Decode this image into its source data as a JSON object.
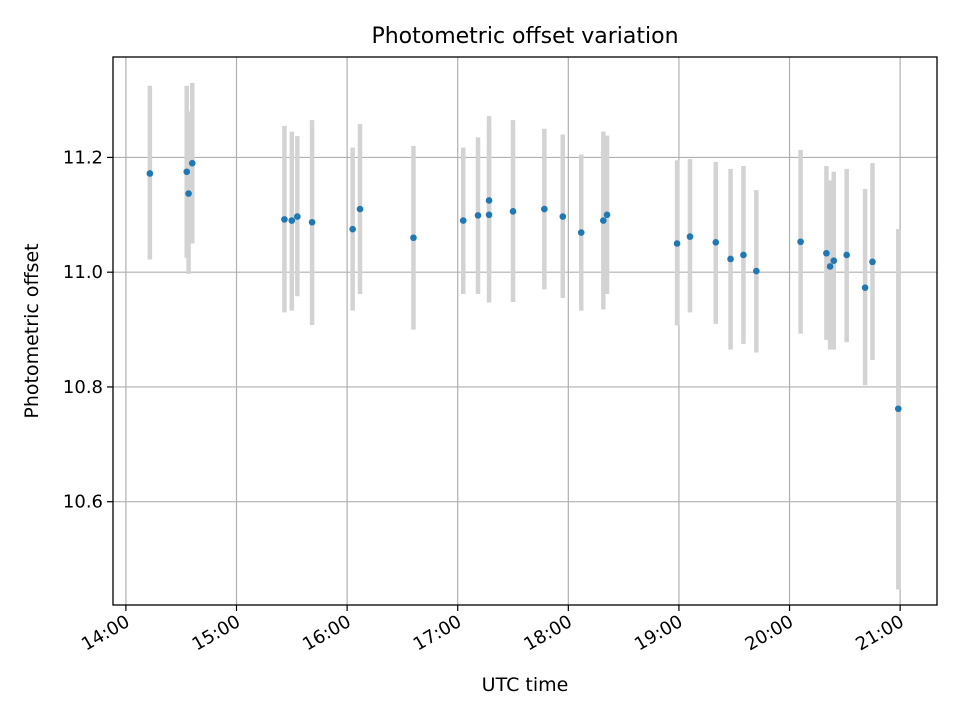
{
  "chart_data": {
    "type": "scatter",
    "title": "Photometric offset variation",
    "xlabel": "UTC time",
    "ylabel": "Photometric offset",
    "x_ticks": [
      "14:00",
      "15:00",
      "16:00",
      "17:00",
      "18:00",
      "19:00",
      "20:00",
      "21:00"
    ],
    "y_ticks": [
      "10.6",
      "10.8",
      "11.0",
      "11.2"
    ],
    "xlim": [
      "13:53",
      "21:20"
    ],
    "ylim": [
      10.42,
      11.375
    ],
    "grid": true,
    "colors": {
      "points": "#1f77b4",
      "errorbars": "#d3d3d3",
      "grid": "#b0b0b0"
    },
    "points": [
      {
        "x": "14:13",
        "y": 11.172,
        "yerr_low": 11.022,
        "yerr_high": 11.325
      },
      {
        "x": "14:33",
        "y": 11.175,
        "yerr_low": 11.025,
        "yerr_high": 11.325
      },
      {
        "x": "14:34",
        "y": 11.137,
        "yerr_low": 10.997,
        "yerr_high": 11.28
      },
      {
        "x": "14:36",
        "y": 11.19,
        "yerr_low": 11.05,
        "yerr_high": 11.33
      },
      {
        "x": "15:26",
        "y": 11.092,
        "yerr_low": 10.93,
        "yerr_high": 11.255
      },
      {
        "x": "15:30",
        "y": 11.09,
        "yerr_low": 10.933,
        "yerr_high": 11.245
      },
      {
        "x": "15:33",
        "y": 11.097,
        "yerr_low": 10.958,
        "yerr_high": 11.237
      },
      {
        "x": "15:41",
        "y": 11.087,
        "yerr_low": 10.908,
        "yerr_high": 11.265
      },
      {
        "x": "16:03",
        "y": 11.075,
        "yerr_low": 10.933,
        "yerr_high": 11.217
      },
      {
        "x": "16:07",
        "y": 11.11,
        "yerr_low": 10.962,
        "yerr_high": 11.258
      },
      {
        "x": "16:36",
        "y": 11.06,
        "yerr_low": 10.9,
        "yerr_high": 11.22
      },
      {
        "x": "17:03",
        "y": 11.09,
        "yerr_low": 10.962,
        "yerr_high": 11.217
      },
      {
        "x": "17:11",
        "y": 11.099,
        "yerr_low": 10.962,
        "yerr_high": 11.235
      },
      {
        "x": "17:17",
        "y": 11.125,
        "yerr_low": 10.997,
        "yerr_high": 11.272
      },
      {
        "x": "17:17",
        "y": 11.1,
        "yerr_low": 10.947,
        "yerr_high": 11.255
      },
      {
        "x": "17:30",
        "y": 11.106,
        "yerr_low": 10.948,
        "yerr_high": 11.265
      },
      {
        "x": "17:47",
        "y": 11.11,
        "yerr_low": 10.97,
        "yerr_high": 11.25
      },
      {
        "x": "17:57",
        "y": 11.097,
        "yerr_low": 10.955,
        "yerr_high": 11.24
      },
      {
        "x": "18:07",
        "y": 11.069,
        "yerr_low": 10.933,
        "yerr_high": 11.205
      },
      {
        "x": "18:19",
        "y": 11.09,
        "yerr_low": 10.935,
        "yerr_high": 11.245
      },
      {
        "x": "18:21",
        "y": 11.1,
        "yerr_low": 10.962,
        "yerr_high": 11.238
      },
      {
        "x": "18:59",
        "y": 11.05,
        "yerr_low": 10.907,
        "yerr_high": 11.195
      },
      {
        "x": "19:06",
        "y": 11.062,
        "yerr_low": 10.93,
        "yerr_high": 11.197
      },
      {
        "x": "19:20",
        "y": 11.052,
        "yerr_low": 10.91,
        "yerr_high": 11.192
      },
      {
        "x": "19:28",
        "y": 11.023,
        "yerr_low": 10.865,
        "yerr_high": 11.18
      },
      {
        "x": "19:35",
        "y": 11.03,
        "yerr_low": 10.875,
        "yerr_high": 11.185
      },
      {
        "x": "19:42",
        "y": 11.002,
        "yerr_low": 10.86,
        "yerr_high": 11.143
      },
      {
        "x": "20:06",
        "y": 11.053,
        "yerr_low": 10.893,
        "yerr_high": 11.213
      },
      {
        "x": "20:20",
        "y": 11.033,
        "yerr_low": 10.882,
        "yerr_high": 11.185
      },
      {
        "x": "20:22",
        "y": 11.01,
        "yerr_low": 10.865,
        "yerr_high": 11.16
      },
      {
        "x": "20:24",
        "y": 11.02,
        "yerr_low": 10.865,
        "yerr_high": 11.175
      },
      {
        "x": "20:31",
        "y": 11.03,
        "yerr_low": 10.878,
        "yerr_high": 11.18
      },
      {
        "x": "20:41",
        "y": 10.973,
        "yerr_low": 10.803,
        "yerr_high": 11.145
      },
      {
        "x": "20:45",
        "y": 11.018,
        "yerr_low": 10.847,
        "yerr_high": 11.19
      },
      {
        "x": "20:59",
        "y": 10.762,
        "yerr_low": 10.447,
        "yerr_high": 11.075
      }
    ]
  }
}
